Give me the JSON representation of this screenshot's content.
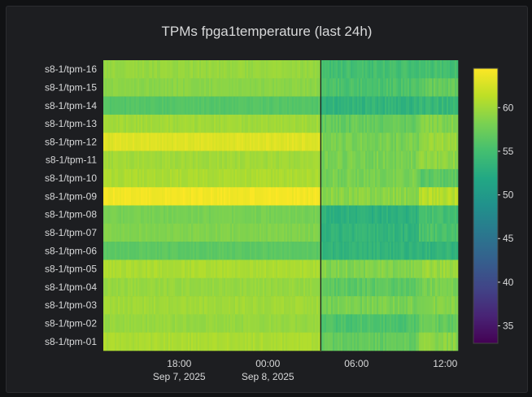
{
  "chart_data": {
    "type": "heatmap",
    "title": "TPMs fpga1temperature (last 24h)",
    "rows": [
      "s8-1/tpm-16",
      "s8-1/tpm-15",
      "s8-1/tpm-14",
      "s8-1/tpm-13",
      "s8-1/tpm-12",
      "s8-1/tpm-11",
      "s8-1/tpm-10",
      "s8-1/tpm-09",
      "s8-1/tpm-08",
      "s8-1/tpm-07",
      "s8-1/tpm-06",
      "s8-1/tpm-05",
      "s8-1/tpm-04",
      "s8-1/tpm-03",
      "s8-1/tpm-02",
      "s8-1/tpm-01"
    ],
    "x_ticks": [
      {
        "time": "18:00",
        "date": "Sep 7, 2025"
      },
      {
        "time": "00:00",
        "date": "Sep 8, 2025"
      },
      {
        "time": "06:00",
        "date": ""
      },
      {
        "time": "12:00",
        "date": ""
      }
    ],
    "x_range": [
      "2025-09-07T12:52",
      "2025-09-08T12:52"
    ],
    "change_time": "2025-09-08T03:35",
    "colorscale": "Viridis",
    "zlim": [
      33,
      64.5
    ],
    "colorbar_ticks": [
      35,
      40,
      45,
      50,
      55,
      60
    ],
    "segments": [
      {
        "row": "s8-1/tpm-16",
        "before": 59.5,
        "after": 55.0,
        "tail": 55.0
      },
      {
        "row": "s8-1/tpm-15",
        "before": 59.0,
        "after": 55.5,
        "tail": 57.0
      },
      {
        "row": "s8-1/tpm-14",
        "before": 56.0,
        "after": 53.5,
        "tail": 54.0
      },
      {
        "row": "s8-1/tpm-13",
        "before": 60.0,
        "after": 57.0,
        "tail": 58.5
      },
      {
        "row": "s8-1/tpm-12",
        "before": 63.0,
        "after": 58.0,
        "tail": 59.5
      },
      {
        "row": "s8-1/tpm-11",
        "before": 60.0,
        "after": 58.0,
        "tail": 59.0
      },
      {
        "row": "s8-1/tpm-10",
        "before": 60.5,
        "after": 58.0,
        "tail": 56.5
      },
      {
        "row": "s8-1/tpm-09",
        "before": 64.0,
        "after": 59.0,
        "tail": 61.0
      },
      {
        "row": "s8-1/tpm-08",
        "before": 58.0,
        "after": 53.0,
        "tail": 55.0
      },
      {
        "row": "s8-1/tpm-07",
        "before": 58.5,
        "after": 53.5,
        "tail": 55.5
      },
      {
        "row": "s8-1/tpm-06",
        "before": 56.5,
        "after": 53.5,
        "tail": 53.5
      },
      {
        "row": "s8-1/tpm-05",
        "before": 60.5,
        "after": 58.5,
        "tail": 59.5
      },
      {
        "row": "s8-1/tpm-04",
        "before": 59.5,
        "after": 56.5,
        "tail": 58.0
      },
      {
        "row": "s8-1/tpm-03",
        "before": 60.0,
        "after": 58.0,
        "tail": 58.5
      },
      {
        "row": "s8-1/tpm-02",
        "before": 59.5,
        "after": 55.5,
        "tail": 57.0
      },
      {
        "row": "s8-1/tpm-01",
        "before": 60.5,
        "after": 57.0,
        "tail": 59.0
      }
    ]
  }
}
